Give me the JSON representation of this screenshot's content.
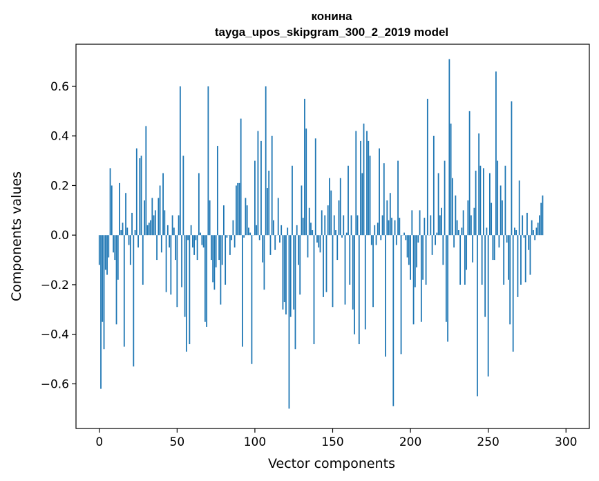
{
  "chart_data": {
    "type": "bar",
    "title": "конина",
    "subtitle": "tayga_upos_skipgram_300_2_2019 model",
    "xlabel": "Vector components",
    "ylabel": "Components values",
    "xlim": [
      -15,
      315
    ],
    "ylim": [
      -0.78,
      0.77
    ],
    "xticks": [
      0,
      50,
      100,
      150,
      200,
      250,
      300
    ],
    "yticks": [
      -0.6,
      -0.4,
      -0.2,
      0.0,
      0.2,
      0.4,
      0.6
    ],
    "xtick_labels": [
      "0",
      "50",
      "100",
      "150",
      "200",
      "250",
      "300"
    ],
    "ytick_labels": [
      "−0.6",
      "−0.4",
      "−0.2",
      "0.0",
      "0.2",
      "0.4",
      "0.6"
    ],
    "bar_color": "#1f77b4",
    "grid": false,
    "values": [
      -0.12,
      -0.62,
      -0.35,
      -0.46,
      -0.14,
      -0.16,
      -0.09,
      0.27,
      0.2,
      -0.07,
      -0.1,
      -0.36,
      -0.18,
      0.21,
      0.02,
      0.05,
      -0.45,
      0.17,
      0.03,
      -0.04,
      -0.12,
      0.09,
      -0.53,
      0.02,
      0.35,
      -0.05,
      0.31,
      0.32,
      -0.2,
      0.14,
      0.44,
      0.04,
      0.05,
      0.06,
      0.15,
      0.08,
      0.1,
      -0.1,
      0.15,
      0.2,
      -0.07,
      0.25,
      0.1,
      -0.23,
      0.04,
      -0.05,
      -0.24,
      0.08,
      0.03,
      -0.1,
      -0.29,
      0.08,
      0.6,
      -0.21,
      0.32,
      -0.33,
      -0.47,
      -0.02,
      -0.44,
      0.04,
      -0.05,
      -0.08,
      -0.02,
      -0.1,
      0.25,
      0.01,
      -0.04,
      -0.05,
      -0.35,
      -0.37,
      0.6,
      0.14,
      -0.1,
      -0.19,
      -0.22,
      -0.13,
      0.36,
      -0.1,
      -0.28,
      -0.12,
      0.12,
      -0.2,
      -0.01,
      0.0,
      -0.08,
      -0.02,
      0.06,
      -0.05,
      0.2,
      0.21,
      0.21,
      0.47,
      -0.45,
      -0.01,
      0.15,
      0.12,
      0.03,
      0.01,
      -0.52,
      0.0,
      0.3,
      0.04,
      0.42,
      -0.02,
      0.38,
      -0.11,
      -0.22,
      0.6,
      0.19,
      0.26,
      -0.08,
      0.4,
      0.06,
      -0.06,
      0.0,
      0.15,
      -0.03,
      0.04,
      -0.3,
      -0.27,
      -0.32,
      0.03,
      -0.7,
      -0.33,
      0.28,
      -0.3,
      -0.46,
      0.04,
      -0.12,
      -0.24,
      0.2,
      0.07,
      0.55,
      0.43,
      -0.09,
      0.11,
      0.05,
      0.02,
      -0.44,
      0.39,
      -0.03,
      -0.05,
      -0.07,
      0.1,
      -0.25,
      0.08,
      -0.23,
      0.12,
      0.23,
      0.18,
      -0.29,
      0.08,
      0.02,
      -0.1,
      0.14,
      0.23,
      -0.01,
      0.08,
      -0.28,
      0.01,
      0.28,
      -0.2,
      0.08,
      -0.3,
      -0.4,
      0.42,
      0.08,
      -0.44,
      0.38,
      0.25,
      0.45,
      -0.38,
      0.42,
      0.38,
      0.32,
      -0.04,
      -0.29,
      0.04,
      -0.04,
      0.05,
      0.35,
      -0.02,
      0.08,
      0.29,
      -0.49,
      0.14,
      0.06,
      0.17,
      0.07,
      -0.69,
      0.06,
      -0.04,
      0.3,
      0.07,
      -0.48,
      0.0,
      0.01,
      -0.02,
      -0.09,
      -0.12,
      -0.18,
      0.1,
      -0.36,
      -0.21,
      -0.13,
      -0.03,
      0.1,
      -0.35,
      -0.18,
      0.07,
      -0.2,
      0.55,
      0.0,
      0.08,
      -0.08,
      0.4,
      -0.04,
      0.01,
      0.25,
      0.08,
      0.11,
      -0.12,
      0.3,
      -0.35,
      -0.43,
      0.71,
      0.45,
      0.23,
      -0.05,
      0.16,
      0.06,
      0.02,
      -0.2,
      0.03,
      0.1,
      -0.2,
      -0.14,
      0.14,
      0.5,
      0.08,
      -0.11,
      0.11,
      0.26,
      -0.65,
      0.41,
      0.28,
      -0.2,
      0.27,
      -0.33,
      0.03,
      -0.57,
      0.25,
      0.13,
      -0.1,
      -0.1,
      0.66,
      0.3,
      -0.05,
      0.2,
      0.14,
      -0.2,
      0.28,
      -0.03,
      -0.18,
      -0.36,
      0.54,
      -0.47,
      0.03,
      0.02,
      -0.25,
      0.22,
      -0.2,
      0.08,
      -0.01,
      -0.19,
      0.09,
      -0.06,
      -0.16,
      0.06,
      0.02,
      -0.02,
      0.03,
      0.05,
      0.08,
      0.13,
      0.16
    ]
  }
}
